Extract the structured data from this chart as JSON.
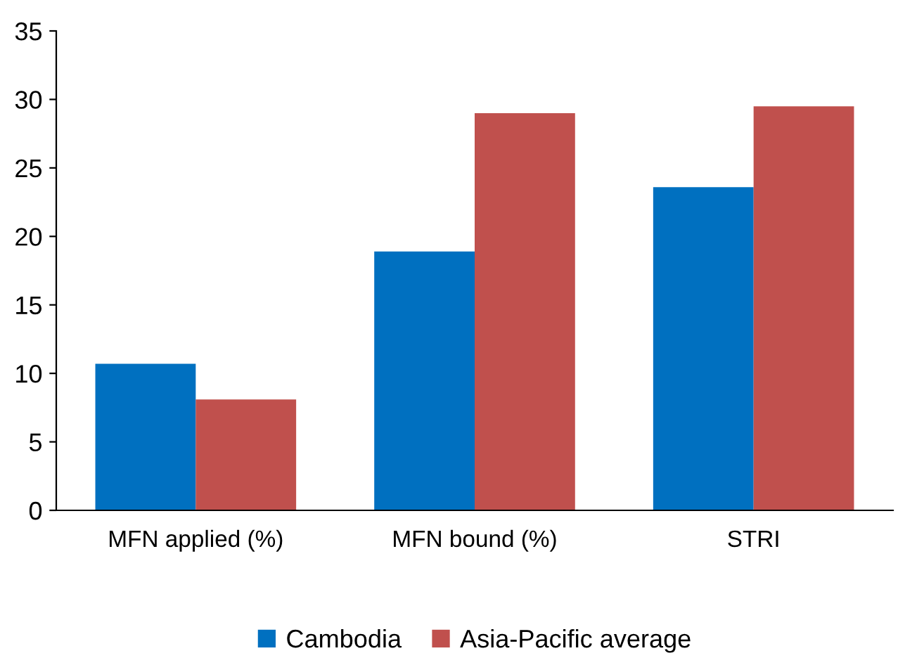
{
  "chart_data": {
    "type": "bar",
    "categories": [
      "MFN applied (%)",
      "MFN bound (%)",
      "STRI"
    ],
    "series": [
      {
        "name": "Cambodia",
        "color": "#0070c0",
        "values": [
          10.7,
          18.9,
          23.6
        ]
      },
      {
        "name": "Asia-Pacific average",
        "color": "#c0504d",
        "values": [
          8.1,
          29.0,
          29.5
        ]
      }
    ],
    "ylim": [
      0,
      35
    ],
    "yticks": [
      0,
      5,
      10,
      15,
      20,
      25,
      30,
      35
    ],
    "grid": false,
    "legend": "bottom"
  }
}
